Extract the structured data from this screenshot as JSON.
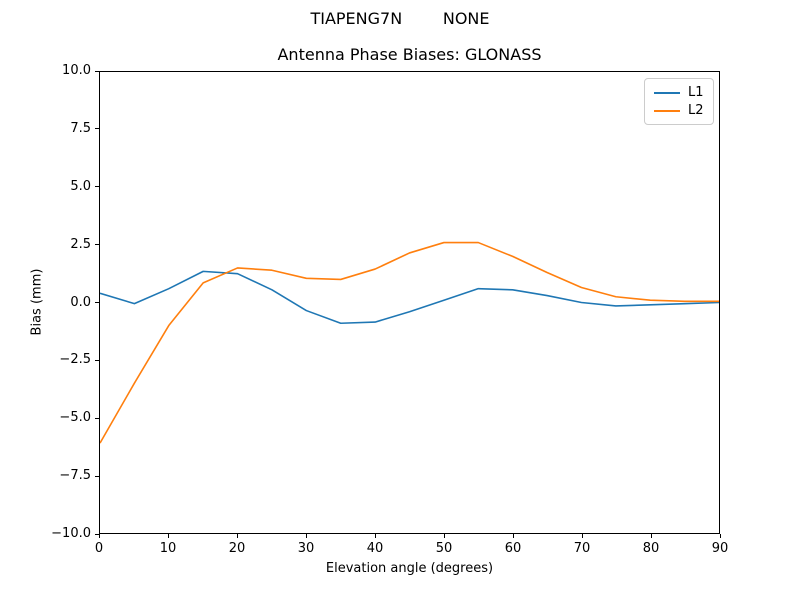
{
  "figure": {
    "suptitle": "TIAPENG7N        NONE"
  },
  "chart_data": {
    "type": "line",
    "title": "Antenna Phase Biases: GLONASS",
    "xlabel": "Elevation angle (degrees)",
    "ylabel": "Bias (mm)",
    "xlim": [
      0,
      90
    ],
    "ylim": [
      -10,
      10
    ],
    "grid": false,
    "x": [
      0,
      5,
      10,
      15,
      20,
      25,
      30,
      35,
      40,
      45,
      50,
      55,
      60,
      65,
      70,
      75,
      80,
      85,
      90
    ],
    "series": [
      {
        "name": "L1",
        "color": "#1f77b4",
        "values": [
          0.4,
          -0.05,
          0.6,
          1.35,
          1.25,
          0.55,
          -0.35,
          -0.9,
          -0.85,
          -0.4,
          0.1,
          0.6,
          0.55,
          0.3,
          0.0,
          -0.15,
          -0.1,
          -0.05,
          0.0
        ]
      },
      {
        "name": "L2",
        "color": "#ff7f0e",
        "values": [
          -6.1,
          -3.5,
          -1.0,
          0.85,
          1.5,
          1.4,
          1.05,
          1.0,
          1.45,
          2.15,
          2.6,
          2.6,
          2.0,
          1.3,
          0.65,
          0.25,
          0.1,
          0.05,
          0.05
        ]
      }
    ],
    "xticks": {
      "values": [
        0,
        10,
        20,
        30,
        40,
        50,
        60,
        70,
        80,
        90
      ],
      "labels": [
        "0",
        "10",
        "20",
        "30",
        "40",
        "50",
        "60",
        "70",
        "80",
        "90"
      ]
    },
    "yticks": {
      "values": [
        -10,
        -7.5,
        -5,
        -2.5,
        0,
        2.5,
        5,
        7.5,
        10
      ],
      "labels": [
        "−10.0",
        "−7.5",
        "−5.0",
        "−2.5",
        "0.0",
        "2.5",
        "5.0",
        "7.5",
        "10.0"
      ]
    },
    "legend": {
      "position": "upper right",
      "entries": [
        "L1",
        "L2"
      ]
    }
  }
}
